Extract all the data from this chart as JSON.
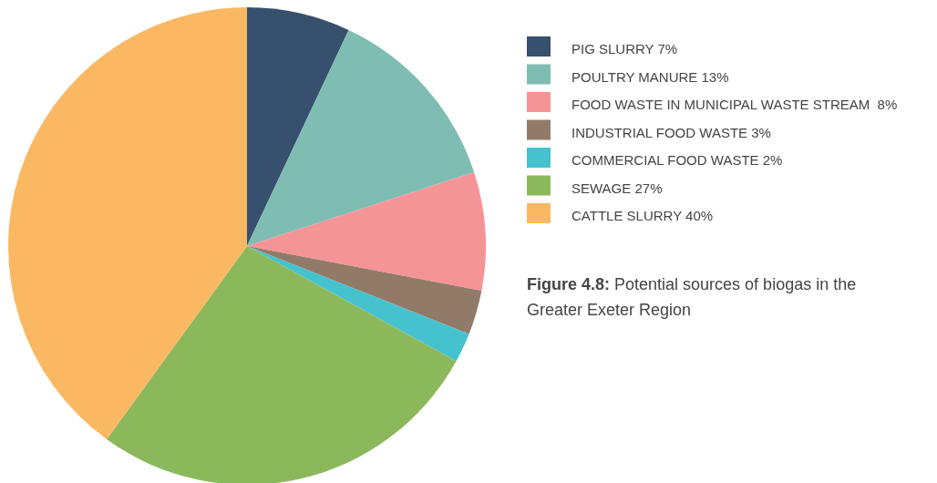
{
  "chart_data": {
    "type": "pie",
    "categories": [
      "PIG SLURRY 7%",
      "POULTRY MANURE 13%",
      "FOOD WASTE IN MUNICIPAL WASTE STREAM  8%",
      "INDUSTRIAL FOOD WASTE 3%",
      "COMMERCIAL FOOD WASTE 2%",
      "SEWAGE 27%",
      "CATTLE SLURRY 40%"
    ],
    "values": [
      7,
      13,
      8,
      3,
      2,
      27,
      40
    ],
    "colors": [
      "#36506e",
      "#7fbdb3",
      "#f59497",
      "#927a68",
      "#45c2cd",
      "#8cb85c",
      "#fbb862"
    ],
    "legend": "right",
    "annotations": [
      "Figure 4.8: Potential sources of biogas in the Greater Exeter Region"
    ]
  }
}
